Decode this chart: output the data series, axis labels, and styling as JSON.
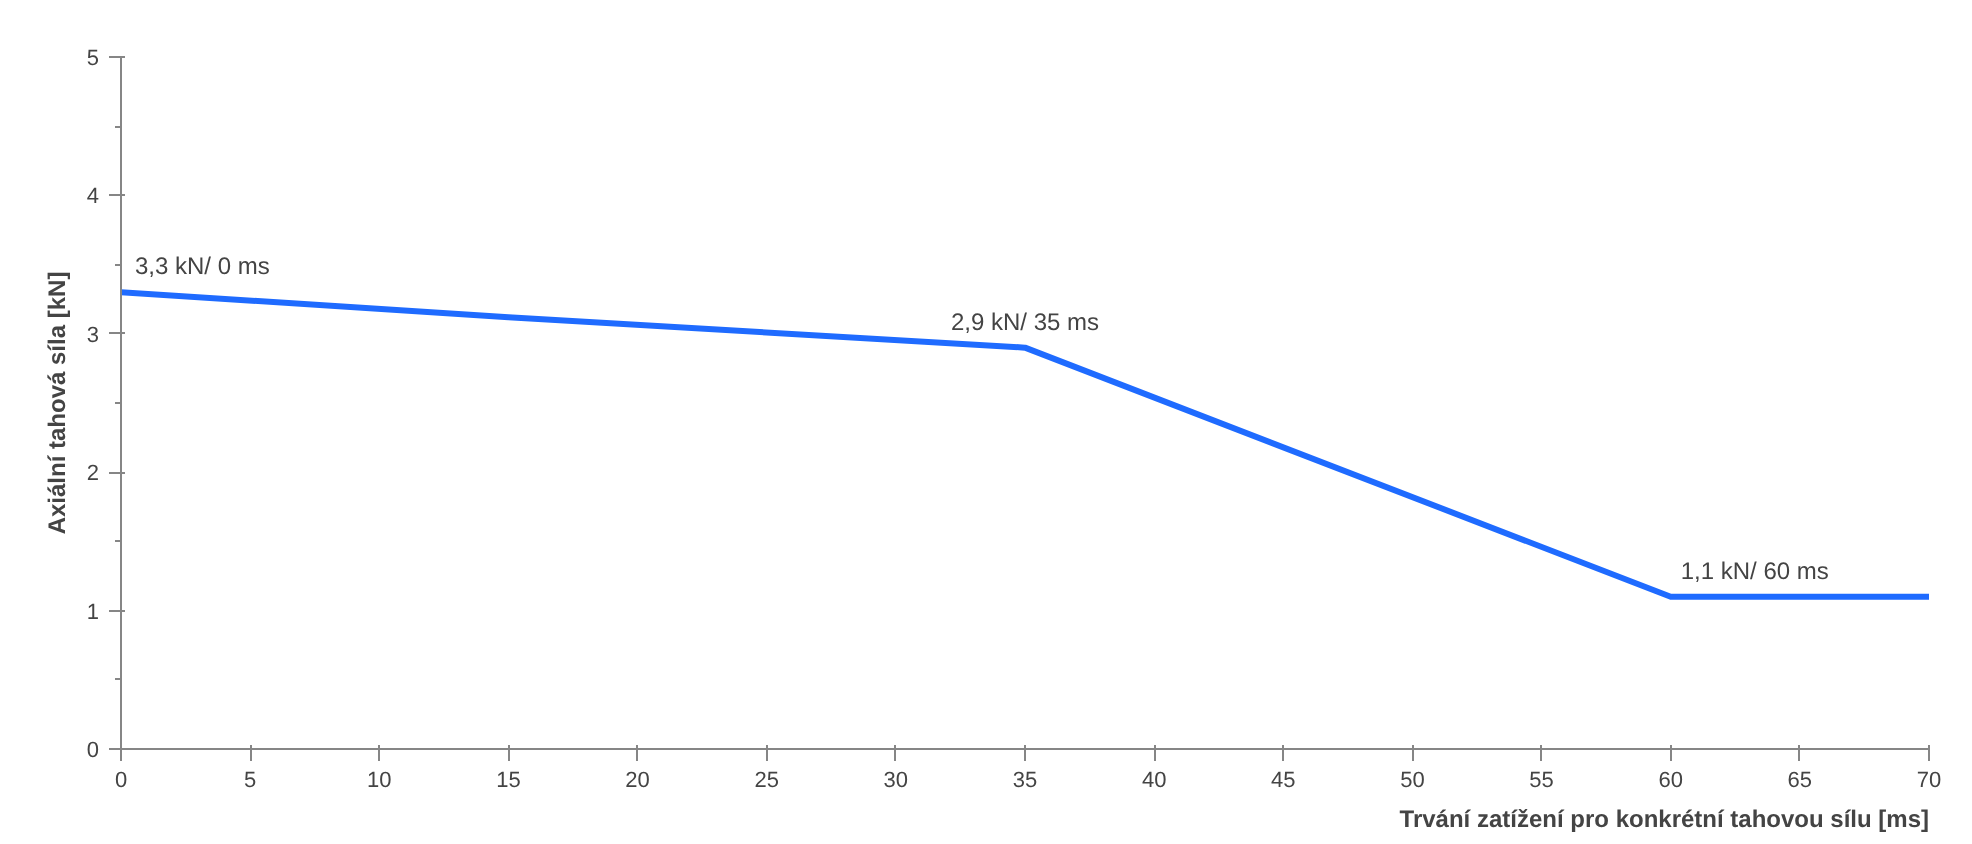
{
  "chart_data": {
    "type": "line",
    "xlabel": "Trvání zatížení pro konkrétní tahovou sílu [ms]",
    "ylabel": "Axiální tahová síla [kN]",
    "x": [
      0,
      15,
      35,
      60,
      70
    ],
    "series": [
      {
        "color": "#1f6bff",
        "values": [
          3.3,
          3.12,
          2.9,
          1.1,
          1.1
        ]
      }
    ],
    "xlim": [
      0,
      70
    ],
    "xticks": [
      0,
      5,
      10,
      15,
      20,
      25,
      30,
      35,
      40,
      45,
      50,
      55,
      60,
      65,
      70
    ],
    "ylim": [
      0,
      5
    ],
    "yticks": [
      0,
      1,
      2,
      3,
      4,
      5
    ],
    "grid": false,
    "marker": "none",
    "line_style": "solid",
    "annotations": [
      {
        "text": "3,3 kN/ 0 ms",
        "x": 0,
        "y": 3.3
      },
      {
        "text": "2,9 kN/ 35 ms",
        "x": 35,
        "y": 2.9
      },
      {
        "text": "1,1 kN/ 60 ms",
        "x": 60,
        "y": 1.1
      }
    ]
  }
}
